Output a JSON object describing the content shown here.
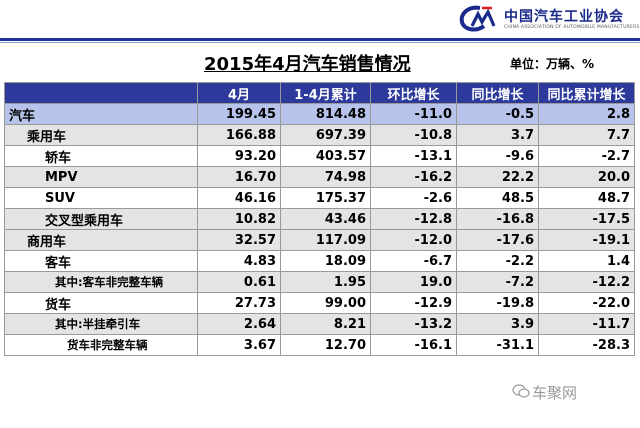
{
  "header": {
    "org_name": "中国汽车工业协会",
    "org_name_en": "CHINA ASSOCIATION OF AUTOMOBILE MANUFACTURERS"
  },
  "title": "2015年4月汽车销售情况",
  "unit": "单位：万辆、%",
  "columns": [
    "",
    "4月",
    "1-4月累计",
    "环比增长",
    "同比增长",
    "同比累计增长"
  ],
  "rows": [
    {
      "name": "汽车",
      "april": "199.45",
      "cumulative": "814.48",
      "mom": "-11.0",
      "yoy": "-0.5",
      "yoy_cum": "2.8"
    },
    {
      "name": "乘用车",
      "april": "166.88",
      "cumulative": "697.39",
      "mom": "-10.8",
      "yoy": "3.7",
      "yoy_cum": "7.7"
    },
    {
      "name": "轿车",
      "april": "93.20",
      "cumulative": "403.57",
      "mom": "-13.1",
      "yoy": "-9.6",
      "yoy_cum": "-2.7"
    },
    {
      "name": "MPV",
      "april": "16.70",
      "cumulative": "74.98",
      "mom": "-16.2",
      "yoy": "22.2",
      "yoy_cum": "20.0"
    },
    {
      "name": "SUV",
      "april": "46.16",
      "cumulative": "175.37",
      "mom": "-2.6",
      "yoy": "48.5",
      "yoy_cum": "48.7"
    },
    {
      "name": "交叉型乘用车",
      "april": "10.82",
      "cumulative": "43.46",
      "mom": "-12.8",
      "yoy": "-16.8",
      "yoy_cum": "-17.5"
    },
    {
      "name": "商用车",
      "april": "32.57",
      "cumulative": "117.09",
      "mom": "-12.0",
      "yoy": "-17.6",
      "yoy_cum": "-19.1"
    },
    {
      "name": "客车",
      "april": "4.83",
      "cumulative": "18.09",
      "mom": "-6.7",
      "yoy": "-2.2",
      "yoy_cum": "1.4"
    },
    {
      "name": "其中:客车非完整车辆",
      "april": "0.61",
      "cumulative": "1.95",
      "mom": "19.0",
      "yoy": "-7.2",
      "yoy_cum": "-12.2"
    },
    {
      "name": "货车",
      "april": "27.73",
      "cumulative": "99.00",
      "mom": "-12.9",
      "yoy": "-19.8",
      "yoy_cum": "-22.0"
    },
    {
      "name": "其中:半挂牵引车",
      "april": "2.64",
      "cumulative": "8.21",
      "mom": "-13.2",
      "yoy": "3.9",
      "yoy_cum": "-11.7"
    },
    {
      "name": "货车非完整车辆",
      "april": "3.67",
      "cumulative": "12.70",
      "mom": "-16.1",
      "yoy": "-31.1",
      "yoy_cum": "-28.3"
    }
  ],
  "watermark": "车聚网"
}
